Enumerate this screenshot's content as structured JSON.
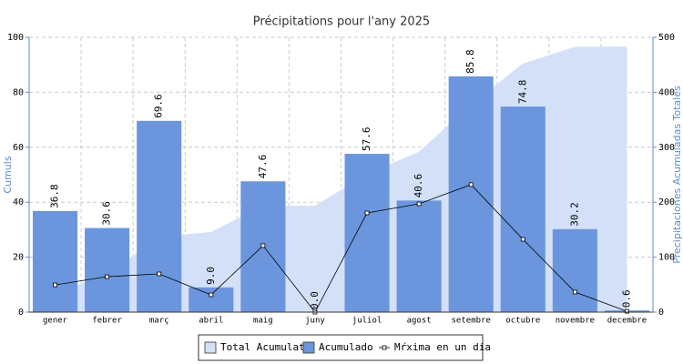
{
  "chart_data": {
    "type": "bar",
    "title": "Précipitations pour l'any 2025",
    "y_label": "Cumuls",
    "y2_label": "Precipitaciones Acumuladas Totales",
    "categories": [
      "gener",
      "febrer",
      "març",
      "abril",
      "maig",
      "juny",
      "juliol",
      "agost",
      "setembre",
      "octubre",
      "novembre",
      "decembre"
    ],
    "ylim": [
      0,
      100
    ],
    "yticks": [
      0,
      20,
      40,
      60,
      80,
      100
    ],
    "y2lim": [
      0,
      500
    ],
    "y2ticks": [
      0,
      100,
      200,
      300,
      400,
      500
    ],
    "grid": true,
    "legend": "bottom",
    "series": [
      {
        "name": "Total Acumulat",
        "type": "area",
        "axis": "y2",
        "color": "#d3e0f8",
        "values": [
          36.8,
          67.4,
          137.0,
          146.0,
          193.6,
          193.6,
          251.2,
          291.8,
          377.6,
          452.4,
          482.6,
          483.2
        ]
      },
      {
        "name": "Acumulado",
        "type": "bar",
        "color": "#6b96dd",
        "values": [
          36.8,
          30.6,
          69.6,
          9.0,
          47.6,
          0.0,
          57.6,
          40.6,
          85.8,
          74.8,
          30.2,
          0.6
        ],
        "value_labels": [
          "36.8",
          "30.6",
          "69.6",
          "9.0",
          "47.6",
          "0.0",
          "57.6",
          "40.6",
          "85.8",
          "74.8",
          "30.2",
          "0.6"
        ]
      },
      {
        "name": "Mŕxima en un dia",
        "type": "line",
        "color": "#000000",
        "values": [
          9.9,
          12.9,
          13.9,
          6.3,
          24.2,
          0.0,
          36.1,
          39.4,
          46.4,
          26.5,
          7.3,
          0.3
        ]
      }
    ]
  }
}
